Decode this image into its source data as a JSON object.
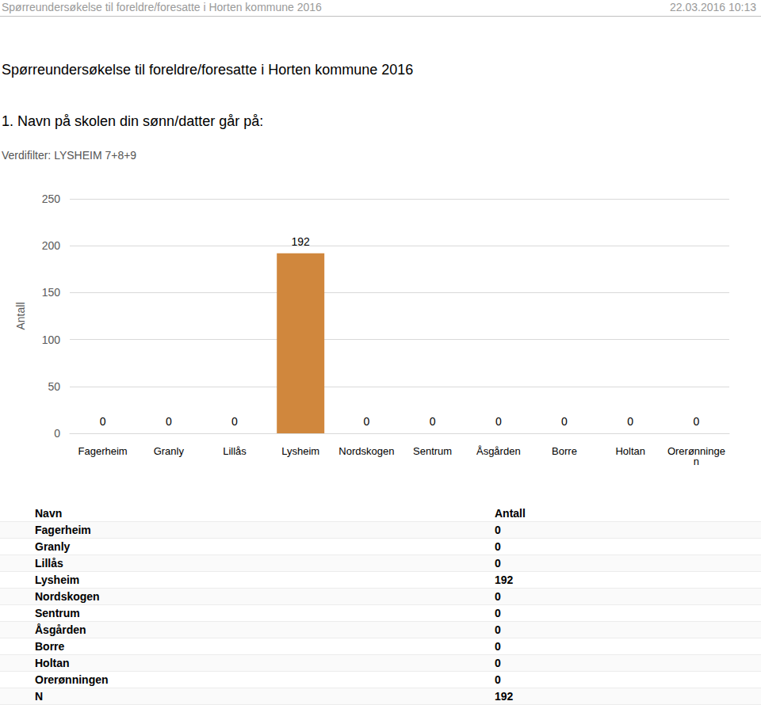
{
  "header": {
    "left": "Spørreundersøkelse til foreldre/foresatte i Horten kommune 2016",
    "right": "22.03.2016 10:13"
  },
  "title": "Spørreundersøkelse til foreldre/foresatte i Horten kommune 2016",
  "question": "1. Navn på skolen din sønn/datter går på:",
  "filter": "Verdifilter: LYSHEIM 7+8+9",
  "chart_data": {
    "type": "bar",
    "y_label": "Antall",
    "categories": [
      "Fagerheim",
      "Granly",
      "Lillås",
      "Lysheim",
      "Nordskogen",
      "Sentrum",
      "Åsgården",
      "Borre",
      "Holtan",
      "Orerønningen"
    ],
    "values": [
      0,
      0,
      0,
      192,
      0,
      0,
      0,
      0,
      0,
      0
    ],
    "color": "#d0873d",
    "ylim": [
      0,
      250
    ],
    "yticks": [
      0,
      50,
      100,
      150,
      200,
      250
    ],
    "grid": true,
    "data_labels": true
  },
  "table": {
    "header": [
      "Navn",
      "Antall"
    ],
    "rows": [
      [
        "Fagerheim",
        0
      ],
      [
        "Granly",
        0
      ],
      [
        "Lillås",
        0
      ],
      [
        "Lysheim",
        192
      ],
      [
        "Nordskogen",
        0
      ],
      [
        "Sentrum",
        0
      ],
      [
        "Åsgården",
        0
      ],
      [
        "Borre",
        0
      ],
      [
        "Holtan",
        0
      ],
      [
        "Orerønningen",
        0
      ],
      [
        "N",
        192
      ]
    ]
  }
}
